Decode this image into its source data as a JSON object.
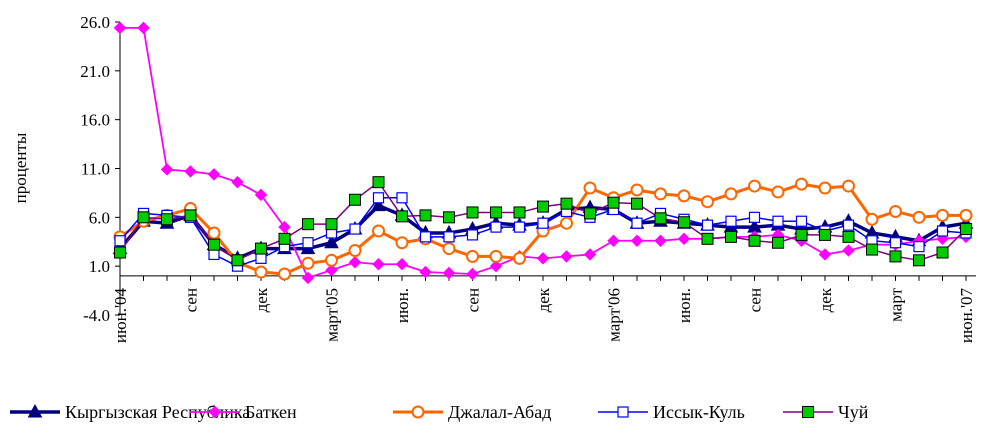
{
  "chart_data": {
    "type": "line",
    "ylabel": "проценты",
    "ylim": [
      -4.0,
      26.0
    ],
    "yticks": [
      "26.0",
      "21.0",
      "16.0",
      "11.0",
      "6.0",
      "1.0",
      "-4.0"
    ],
    "ytick_values": [
      26,
      21,
      16,
      11,
      6,
      1,
      -4
    ],
    "xtick_labels": [
      {
        "label": "июн.'04",
        "index": 0
      },
      {
        "label": "сен",
        "index": 3
      },
      {
        "label": "дек",
        "index": 6
      },
      {
        "label": "март'05",
        "index": 9
      },
      {
        "label": "июн.",
        "index": 12
      },
      {
        "label": "сен",
        "index": 15
      },
      {
        "label": "дек",
        "index": 18
      },
      {
        "label": "март'06",
        "index": 21
      },
      {
        "label": "июн.",
        "index": 24
      },
      {
        "label": "сен",
        "index": 27
      },
      {
        "label": "дек",
        "index": 30
      },
      {
        "label": "март",
        "index": 33
      },
      {
        "label": "июн.'07",
        "index": 36
      }
    ],
    "n_points": 37,
    "grid": false,
    "legend": "bottom",
    "series": [
      {
        "name": "Кыргызская Республика",
        "color": "#000080",
        "marker": "triangle",
        "values": [
          2.8,
          5.6,
          5.4,
          6.2,
          3.2,
          1.8,
          2.8,
          2.8,
          2.8,
          3.4,
          4.8,
          7.2,
          6.2,
          4.4,
          4.4,
          4.8,
          5.4,
          5.2,
          5.4,
          6.8,
          7.0,
          6.8,
          5.4,
          5.6,
          5.4,
          5.2,
          5.0,
          5.0,
          5.2,
          4.8,
          5.0,
          5.6,
          4.4,
          4.0,
          3.6,
          5.0,
          5.4
        ]
      },
      {
        "name": "Баткен",
        "color": "#ff00ff",
        "marker": "diamond",
        "values": [
          25.4,
          25.4,
          10.9,
          10.7,
          10.4,
          9.6,
          8.3,
          5.0,
          -0.2,
          0.6,
          1.4,
          1.2,
          1.2,
          0.4,
          0.3,
          0.2,
          1.0,
          2.0,
          1.8,
          2.0,
          2.2,
          3.6,
          3.6,
          3.6,
          3.8,
          3.8,
          4.0,
          4.0,
          4.2,
          3.6,
          2.2,
          2.6,
          3.2,
          3.2,
          3.6,
          3.8,
          4.0
        ]
      },
      {
        "name": "Джалал-Абад",
        "color": "#ff6600",
        "marker": "circle",
        "values": [
          4.0,
          5.6,
          6.2,
          6.9,
          4.4,
          1.4,
          0.4,
          0.2,
          1.3,
          1.6,
          2.6,
          4.6,
          3.4,
          3.8,
          2.8,
          2.0,
          2.0,
          1.8,
          4.6,
          5.4,
          9.0,
          8.0,
          8.8,
          8.4,
          8.2,
          7.6,
          8.4,
          9.2,
          8.6,
          9.4,
          9.0,
          9.2,
          5.8,
          6.6,
          6.0,
          6.2,
          6.2
        ]
      },
      {
        "name": "Иссык-Куль",
        "color": "#0000ff",
        "marker": "square-open",
        "values": [
          3.6,
          6.4,
          6.2,
          6.0,
          2.2,
          1.0,
          1.8,
          3.0,
          3.4,
          4.4,
          4.8,
          8.0,
          8.0,
          4.0,
          4.0,
          4.2,
          5.0,
          5.0,
          5.4,
          6.6,
          6.0,
          6.8,
          5.4,
          6.4,
          5.8,
          5.2,
          5.6,
          6.0,
          5.6,
          5.6,
          4.6,
          5.2,
          3.6,
          3.4,
          3.0,
          4.6,
          4.4
        ]
      },
      {
        "name": "Чуй",
        "color": "#800080",
        "fill": "#00cc00",
        "marker": "square-filled",
        "values": [
          2.4,
          6.0,
          5.8,
          6.2,
          3.2,
          1.6,
          2.8,
          3.8,
          5.3,
          5.3,
          7.8,
          9.6,
          6.1,
          6.2,
          6.0,
          6.5,
          6.5,
          6.5,
          7.1,
          7.4,
          6.4,
          7.5,
          7.4,
          5.9,
          5.5,
          3.8,
          4.0,
          3.6,
          3.4,
          4.2,
          4.2,
          4.0,
          2.7,
          2.0,
          1.6,
          2.4,
          4.8
        ]
      }
    ]
  }
}
